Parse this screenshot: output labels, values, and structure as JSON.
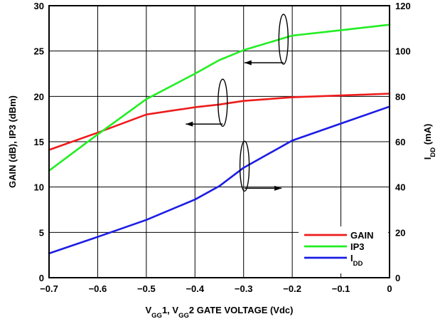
{
  "chart_data": {
    "type": "line",
    "x": [
      -0.7,
      -0.6,
      -0.5,
      -0.4,
      -0.35,
      -0.3,
      -0.2,
      -0.1,
      0
    ],
    "series": [
      {
        "name": "GAIN",
        "axis": "left",
        "color": "#ee1c1c",
        "points": [
          [
            -0.7,
            14.1
          ],
          [
            -0.6,
            16.0
          ],
          [
            -0.5,
            18.0
          ],
          [
            -0.4,
            18.8
          ],
          [
            -0.35,
            19.1
          ],
          [
            -0.3,
            19.5
          ],
          [
            -0.2,
            19.9
          ],
          [
            -0.1,
            20.1
          ],
          [
            0,
            20.3
          ]
        ]
      },
      {
        "name": "IP3",
        "axis": "left",
        "color": "#22ee22",
        "points": [
          [
            -0.7,
            11.8
          ],
          [
            -0.6,
            15.8
          ],
          [
            -0.5,
            19.7
          ],
          [
            -0.4,
            22.5
          ],
          [
            -0.35,
            24.0
          ],
          [
            -0.3,
            25.1
          ],
          [
            -0.2,
            26.7
          ],
          [
            -0.1,
            27.3
          ],
          [
            0,
            27.9
          ]
        ]
      },
      {
        "name": "IDD",
        "axis": "right",
        "color": "#1c1ce6",
        "points": [
          [
            -0.7,
            10.7
          ],
          [
            -0.6,
            18.0
          ],
          [
            -0.5,
            25.5
          ],
          [
            -0.4,
            34.5
          ],
          [
            -0.35,
            40.4
          ],
          [
            -0.3,
            48.5
          ],
          [
            -0.2,
            60.5
          ],
          [
            -0.1,
            68.0
          ],
          [
            0,
            75.5
          ]
        ]
      }
    ],
    "xlabel_parts": [
      {
        "text": "V",
        "sub": false
      },
      {
        "text": "GG",
        "sub": true
      },
      {
        "text": "1, V",
        "sub": false
      },
      {
        "text": "GG",
        "sub": true
      },
      {
        "text": "2  GATE VOLTAGE (Vdc)",
        "sub": false
      }
    ],
    "ylabel_left": "GAIN (dB), IP3 (dBm)",
    "ylabel_right_parts": [
      {
        "text": "I",
        "sub": false
      },
      {
        "text": "DD",
        "sub": true
      },
      {
        "text": " (mA)",
        "sub": false
      }
    ],
    "xlim": [
      -0.7,
      0
    ],
    "ylim_left": [
      0,
      30
    ],
    "ylim_right": [
      0,
      120
    ],
    "xticks": [
      "−0.7",
      "−0.6",
      "−0.5",
      "−0.4",
      "−0.3",
      "−0.2",
      "−0.1",
      "0"
    ],
    "yticks_left": [
      "0",
      "5",
      "10",
      "15",
      "20",
      "25",
      "30"
    ],
    "yticks_right": [
      "0",
      "20",
      "40",
      "60",
      "80",
      "100",
      "120"
    ],
    "grid": true,
    "legend_position": "bottom-right",
    "legend": [
      {
        "label_parts": [
          {
            "text": "GAIN",
            "sub": false
          }
        ],
        "color": "#ee1c1c"
      },
      {
        "label_parts": [
          {
            "text": "IP3",
            "sub": false
          }
        ],
        "color": "#22ee22"
      },
      {
        "label_parts": [
          {
            "text": "I",
            "sub": false
          },
          {
            "text": "DD",
            "sub": true
          }
        ],
        "color": "#1c1ce6"
      }
    ]
  }
}
